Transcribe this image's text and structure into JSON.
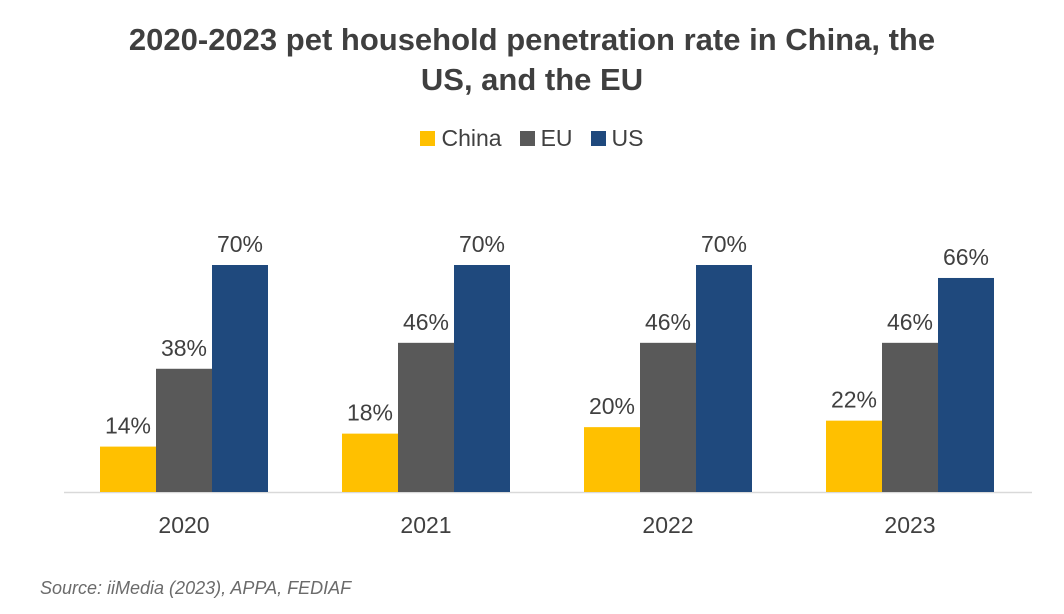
{
  "chart_data": {
    "type": "bar",
    "title_lines": [
      "2020-2023 pet household penetration rate in China, the",
      "US, and the EU"
    ],
    "categories": [
      "2020",
      "2021",
      "2022",
      "2023"
    ],
    "series": [
      {
        "name": "China",
        "color": "#ffc000",
        "values": [
          14,
          18,
          20,
          22
        ],
        "labels": [
          "14%",
          "18%",
          "20%",
          "22%"
        ]
      },
      {
        "name": "EU",
        "color": "#595959",
        "values": [
          38,
          46,
          46,
          46
        ],
        "labels": [
          "38%",
          "46%",
          "46%",
          "46%"
        ]
      },
      {
        "name": "US",
        "color": "#1f497d",
        "values": [
          70,
          70,
          70,
          66
        ],
        "labels": [
          "70%",
          "70%",
          "70%",
          "66%"
        ]
      }
    ],
    "ylim": [
      0,
      70
    ],
    "xlabel": "",
    "ylabel": "",
    "legend_position": "top-center",
    "grid": false
  },
  "source": "Source: iiMedia (2023), APPA, FEDIAF"
}
